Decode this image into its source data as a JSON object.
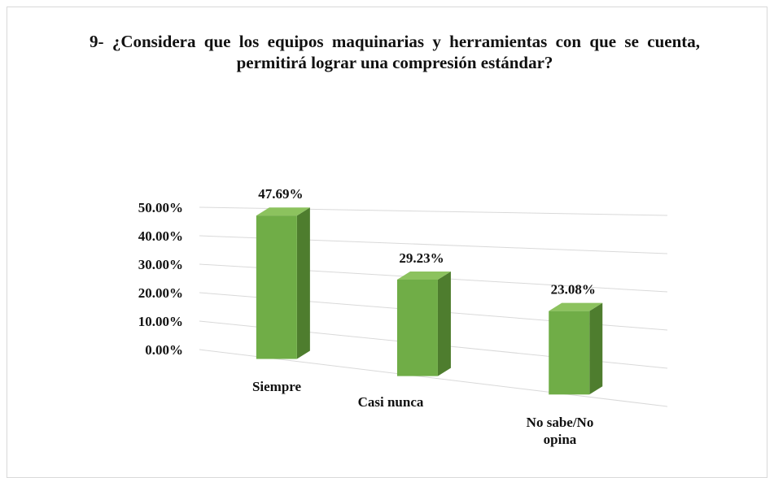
{
  "chart_data": {
    "type": "bar3d",
    "title": "9- ¿Considera que los equipos maquinarias y herramientas con que se cuenta, permitirá lograr una compresión estándar?",
    "categories": [
      "Siempre",
      "Casi nunca",
      "No sabe/No opina"
    ],
    "values": [
      47.69,
      29.23,
      23.08
    ],
    "value_labels": [
      "47.69%",
      "29.23%",
      "23.08%"
    ],
    "color": "#70ad47",
    "ylim": [
      0,
      50
    ],
    "yticks": [
      {
        "value": 0,
        "label": "0.00%"
      },
      {
        "value": 10,
        "label": "10.00%"
      },
      {
        "value": 20,
        "label": "20.00%"
      },
      {
        "value": 30,
        "label": "30.00%"
      },
      {
        "value": 40,
        "label": "40.00%"
      },
      {
        "value": 50,
        "label": "50.00%"
      }
    ],
    "grid": true
  }
}
